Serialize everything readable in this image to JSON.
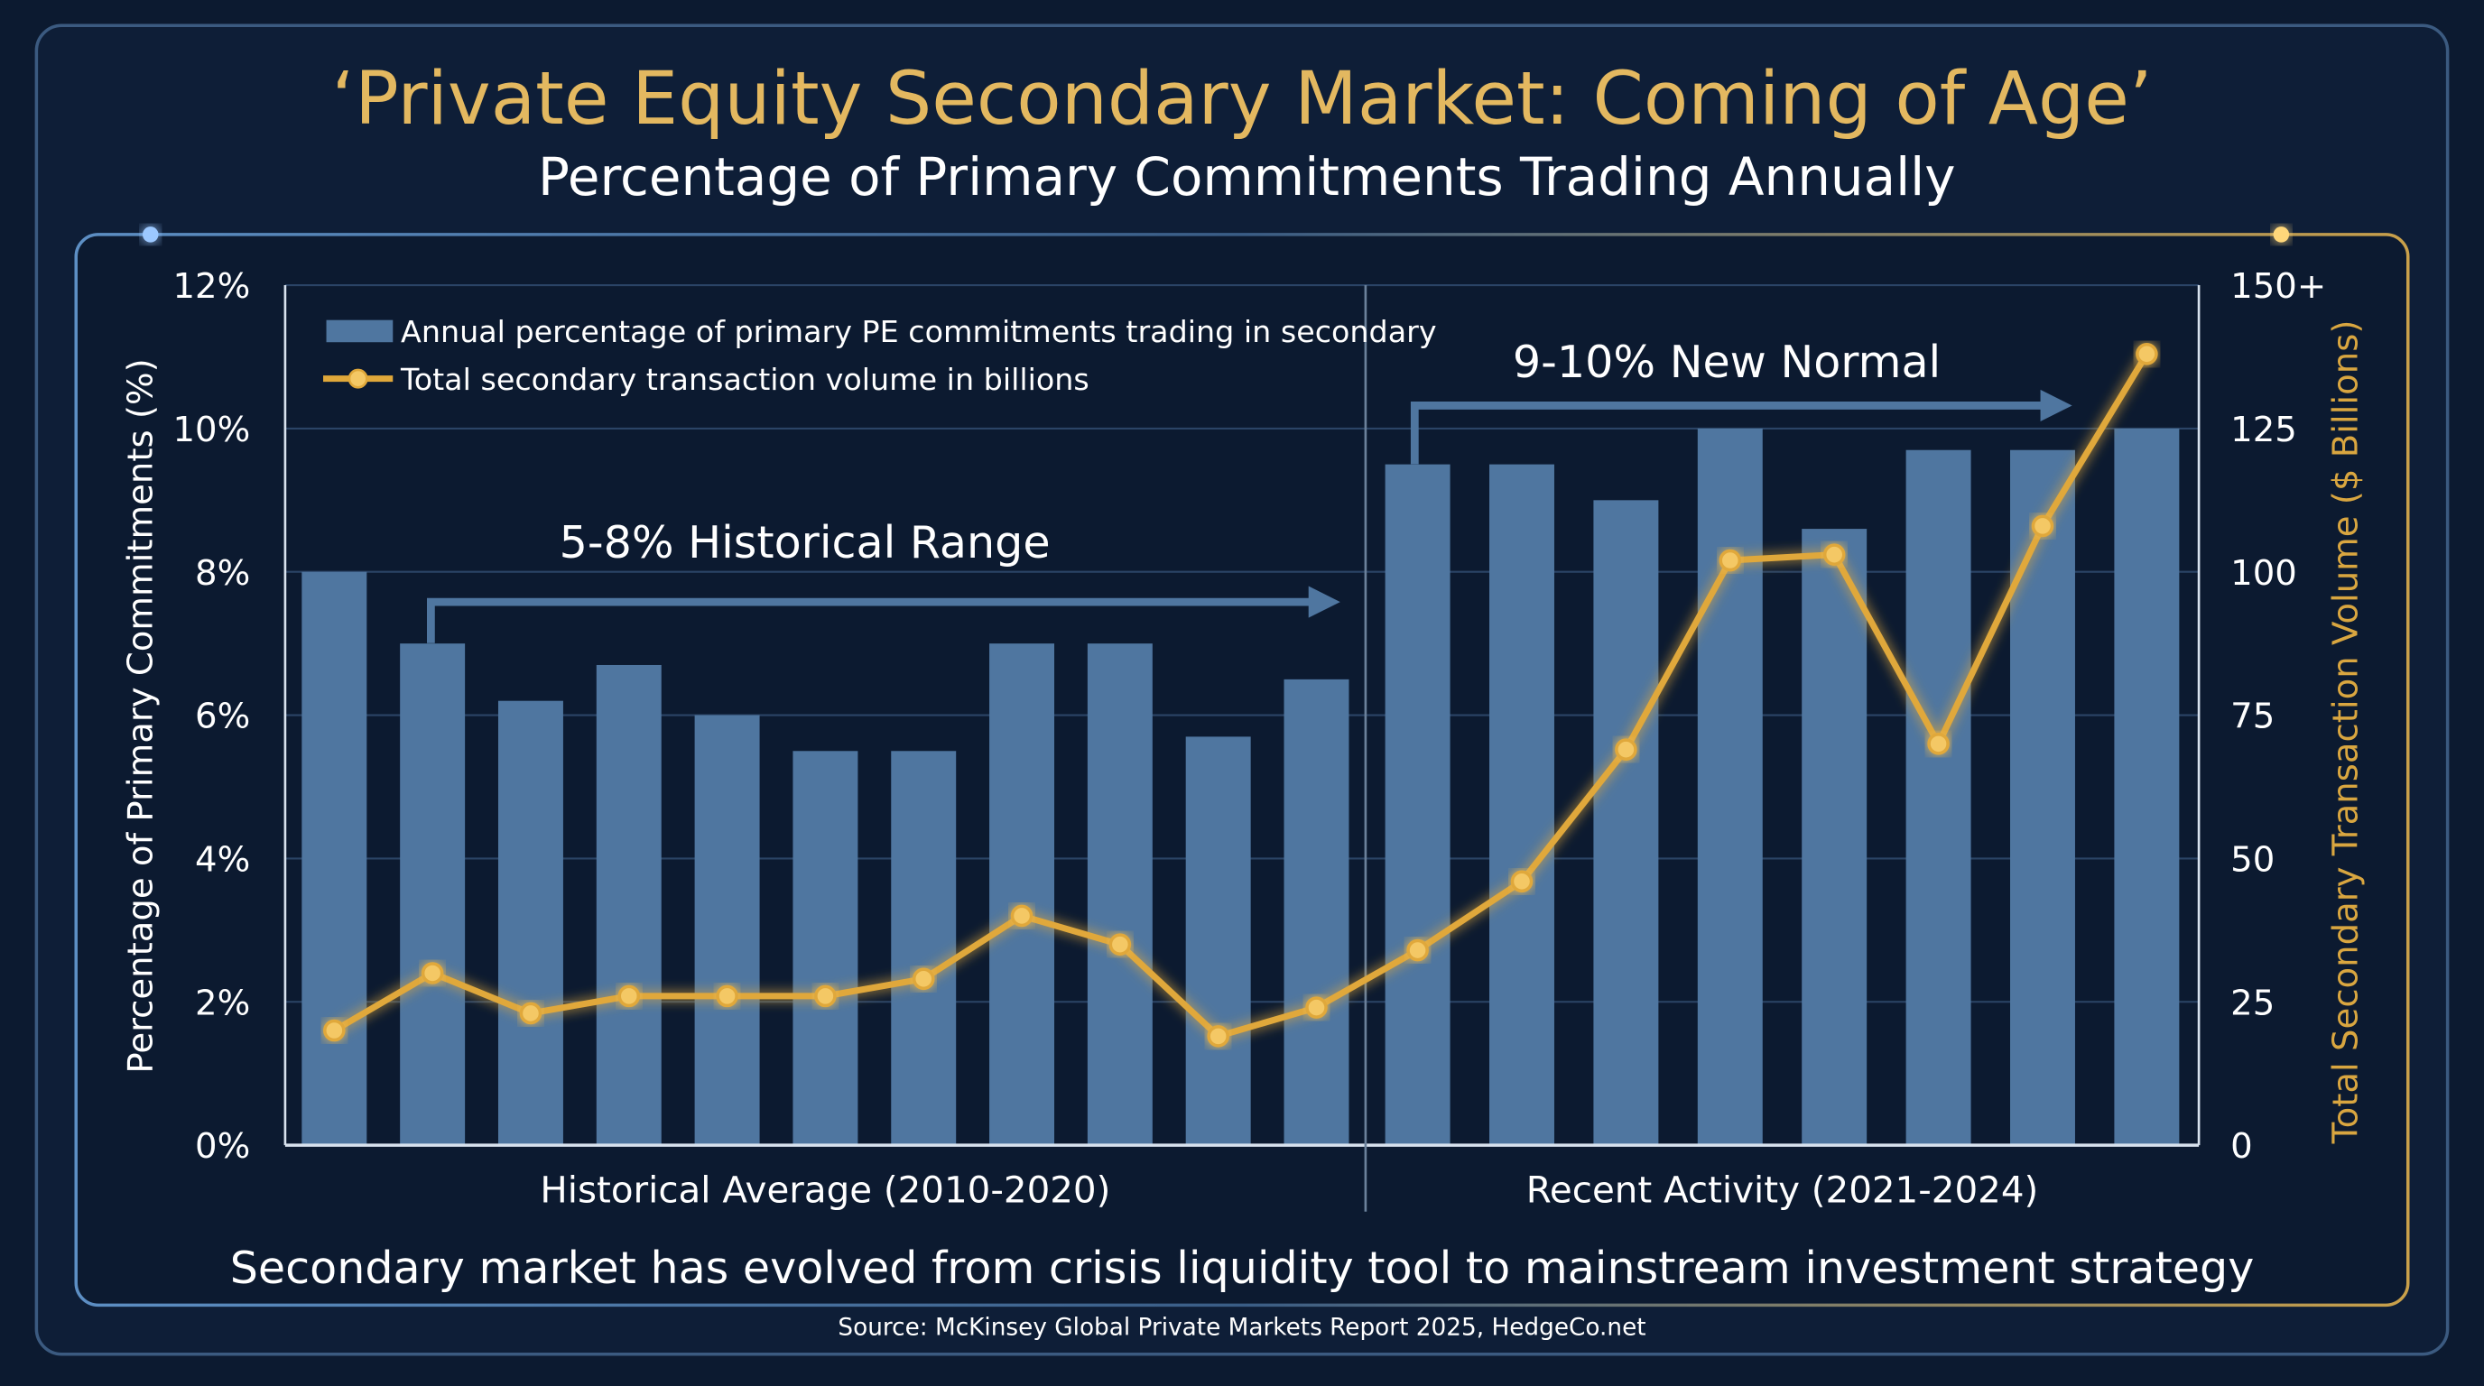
{
  "chart_data": {
    "type": "bar+line",
    "title": "‘Private Equity Secondary Market: Coming of Age’",
    "subtitle": "Percentage of Primary Commitments Trading Annually",
    "ylabel": "Percentage of Primary Commitments (%)",
    "y2label": "Total Secondary Transaction Volume ($ Billions)",
    "ylim": [
      0,
      12
    ],
    "y2lim": [
      0,
      150
    ],
    "yticks": [
      "0%",
      "2%",
      "4%",
      "6%",
      "8%",
      "10%",
      "12%"
    ],
    "y2ticks": [
      "0",
      "25",
      "50",
      "75",
      "100",
      "125",
      "150+"
    ],
    "grid": true,
    "legend_position": "top-left",
    "groups": [
      {
        "label": "Historical Average (2010-2020)",
        "count": 11
      },
      {
        "label": "Recent Activity (2021-2024)",
        "count": 8
      }
    ],
    "series": [
      {
        "name": "Annual percentage of primary PE commitments trading in secondary",
        "type": "bar",
        "axis": "left",
        "color": "#4f76a0",
        "values": [
          8.0,
          7.0,
          6.2,
          6.7,
          6.0,
          5.5,
          5.5,
          7.0,
          7.0,
          5.7,
          6.5,
          9.5,
          9.5,
          9.0,
          10.0,
          8.6,
          9.7,
          9.7,
          10.0
        ]
      },
      {
        "name": "Total secondary transaction volume in billions",
        "type": "line",
        "axis": "right",
        "color": "#e0a83a",
        "values": [
          20,
          30,
          23,
          26,
          26,
          26,
          29,
          40,
          35,
          19,
          24,
          34,
          46,
          69,
          102,
          103,
          70,
          108,
          138
        ]
      }
    ],
    "annotations": [
      {
        "text": "5-8% Historical Range"
      },
      {
        "text": "9-10% New Normal"
      }
    ],
    "caption": "Secondary market has evolved from crisis liquidity tool to mainstream investment strategy",
    "source": "Source: McKinsey Global Private Markets Report 2025, HedgeCo.net"
  },
  "colors": {
    "background": "#0c1a30",
    "title": "#e3b860",
    "bar": "#4f76a0",
    "line": "#e0a83a",
    "text": "#ffffff"
  }
}
